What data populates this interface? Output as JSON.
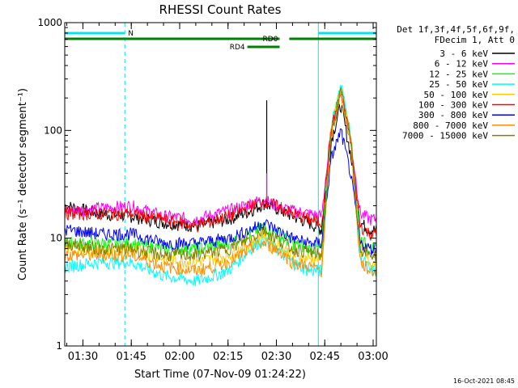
{
  "chart_data": {
    "type": "line",
    "title": "RHESSI Count Rates",
    "xlabel": "Start Time (07-Nov-09 01:24:22)",
    "ylabel": "Count Rate (s⁻¹ detector segment⁻¹)",
    "y_scale": "log",
    "ylim": [
      1,
      1000
    ],
    "xlim": [
      "01:24:22",
      "03:01:00"
    ],
    "x_tick_labels": [
      "01:30",
      "01:45",
      "02:00",
      "02:15",
      "02:30",
      "02:45",
      "03:00"
    ],
    "y_tick_labels": [
      "1",
      "10",
      "100",
      "1000"
    ],
    "legend_header": [
      "Det 1f,3f,4f,5f,6f,9f,",
      "FDecim 1, Att 0"
    ],
    "legend_position": "right",
    "footer_date": "16-Oct-2021 08:45",
    "attenuator_bars": [
      {
        "label": "N",
        "color": "#00e5ee",
        "segments": [
          [
            "01:24:22",
            "01:43:00"
          ],
          [
            "02:43:00",
            "03:01:00"
          ]
        ]
      },
      {
        "label": "RD0",
        "color": "#008000",
        "segments": [
          [
            "01:24:22",
            "02:31:00"
          ],
          [
            "02:34:00",
            "03:01:00"
          ]
        ]
      },
      {
        "label": "RD4",
        "color": "#008000",
        "segments": [
          [
            "02:21:00",
            "02:31:00"
          ]
        ]
      }
    ],
    "event_markers": [
      {
        "time": "01:24:22",
        "color": "#00e5ee",
        "style": "solid"
      },
      {
        "time": "01:43:00",
        "color": "#00e5ee",
        "style": "dashed"
      },
      {
        "time": "02:43:00",
        "color": "#00e5ee",
        "style": "solid"
      },
      {
        "time": "03:01:00",
        "color": "#00e5ee",
        "style": "dashed"
      }
    ],
    "x": [
      "01:25",
      "01:35",
      "01:45",
      "01:55",
      "02:05",
      "02:15",
      "02:22",
      "02:26",
      "02:30",
      "02:35",
      "02:40",
      "02:44",
      "02:47",
      "02:50",
      "02:53",
      "02:56",
      "02:59"
    ],
    "series": [
      {
        "name": "3 - 6 keV",
        "color": "#000000",
        "values": [
          20,
          17,
          16,
          14,
          13,
          15,
          18,
          21,
          19,
          16,
          14,
          12,
          80,
          175,
          60,
          14,
          12
        ]
      },
      {
        "name": "6 - 12 keV",
        "color": "#ff00ff",
        "values": [
          18,
          19,
          20,
          16,
          15,
          18,
          21,
          23,
          20,
          18,
          17,
          16,
          100,
          235,
          85,
          17,
          15
        ]
      },
      {
        "name": "12 - 25 keV",
        "color": "#00ff00",
        "values": [
          9,
          9,
          9,
          8,
          8,
          9,
          11,
          13,
          11,
          9,
          8,
          8,
          110,
          255,
          90,
          10,
          8
        ]
      },
      {
        "name": "25 - 50 keV",
        "color": "#00ffff",
        "values": [
          5.5,
          6,
          6,
          4.5,
          4,
          5,
          8,
          10,
          8,
          6,
          5,
          5,
          100,
          270,
          95,
          7,
          5
        ]
      },
      {
        "name": "50 - 100 keV",
        "color": "#ffcc00",
        "values": [
          8,
          7.5,
          8,
          6.5,
          6,
          7,
          9,
          11,
          9,
          7,
          6.5,
          6.5,
          100,
          240,
          85,
          8,
          6
        ]
      },
      {
        "name": "100 - 300 keV",
        "color": "#ff0000",
        "values": [
          17,
          17,
          17,
          15,
          13,
          16,
          20,
          22,
          20,
          17,
          15,
          14,
          100,
          230,
          80,
          13,
          11
        ]
      },
      {
        "name": "300 - 800 keV",
        "color": "#0000ff",
        "values": [
          12,
          11,
          11,
          9,
          9,
          10,
          12,
          14,
          12,
          10,
          9,
          9,
          55,
          100,
          40,
          9,
          8
        ]
      },
      {
        "name": "800 - 7000 keV",
        "color": "#ff8c00",
        "values": [
          7,
          7,
          7,
          5.5,
          5,
          6,
          8,
          9,
          8,
          6,
          5.5,
          5,
          90,
          220,
          80,
          6,
          5
        ]
      },
      {
        "name": "7000 - 15000 keV",
        "color": "#808000",
        "values": [
          9,
          8,
          8,
          7,
          7,
          8,
          10,
          12,
          10,
          8,
          7.5,
          7,
          95,
          230,
          85,
          8,
          7
        ]
      }
    ],
    "spikes": [
      {
        "time": "02:27",
        "series": "3 - 6 keV",
        "value": 190
      },
      {
        "time": "02:27",
        "series": "6 - 12 keV",
        "value": 40
      }
    ]
  }
}
